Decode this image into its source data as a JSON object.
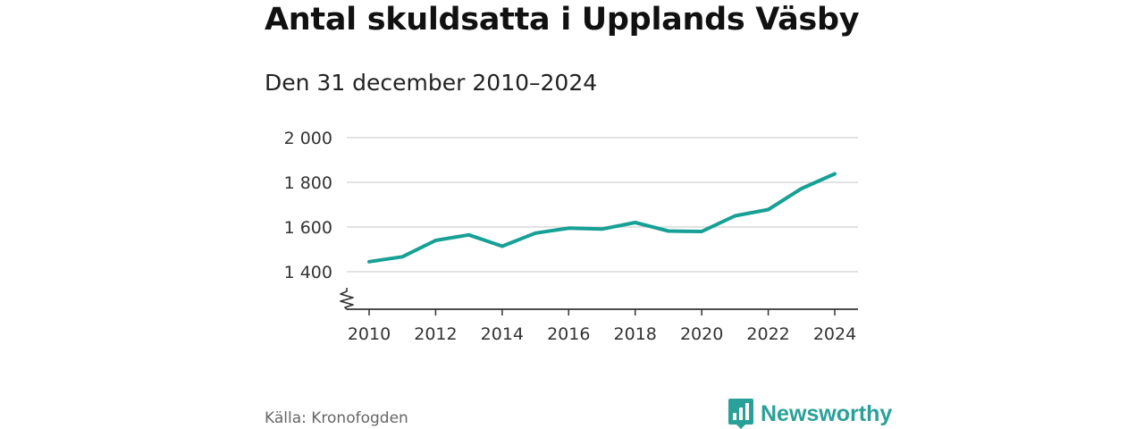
{
  "header": {
    "title": "Antal skuldsatta i Upplands Väsby",
    "subtitle": "Den 31 december 2010–2024"
  },
  "footer": {
    "source": "Källa: Kronofogden",
    "brand": "Newsworthy",
    "brand_icon": "bar-chart-logo-icon"
  },
  "colors": {
    "line": "#17a095",
    "grid": "#d9d9d9",
    "axis": "#333333",
    "brand": "#2aa198"
  },
  "chart_data": {
    "type": "line",
    "title": "Antal skuldsatta i Upplands Väsby",
    "subtitle": "Den 31 december 2010–2024",
    "xlabel": "",
    "ylabel": "",
    "x": [
      2010,
      2011,
      2012,
      2013,
      2014,
      2015,
      2016,
      2017,
      2018,
      2019,
      2020,
      2021,
      2022,
      2023,
      2024
    ],
    "series": [
      {
        "name": "Antal skuldsatta",
        "values": [
          1445,
          1467,
          1540,
          1565,
          1514,
          1573,
          1595,
          1591,
          1620,
          1582,
          1580,
          1650,
          1678,
          1772,
          1838
        ]
      }
    ],
    "ylim": [
      1230,
      2000
    ],
    "yticks": [
      1400,
      1600,
      1800,
      2000
    ],
    "ytick_labels": [
      "1 400",
      "1 600",
      "1 800",
      "2 000"
    ],
    "xticks": [
      2010,
      2012,
      2014,
      2016,
      2018,
      2020,
      2022,
      2024
    ],
    "xtick_labels": [
      "2010",
      "2012",
      "2014",
      "2016",
      "2018",
      "2020",
      "2022",
      "2024"
    ],
    "axis_break": true,
    "grid": true,
    "legend": "none"
  }
}
